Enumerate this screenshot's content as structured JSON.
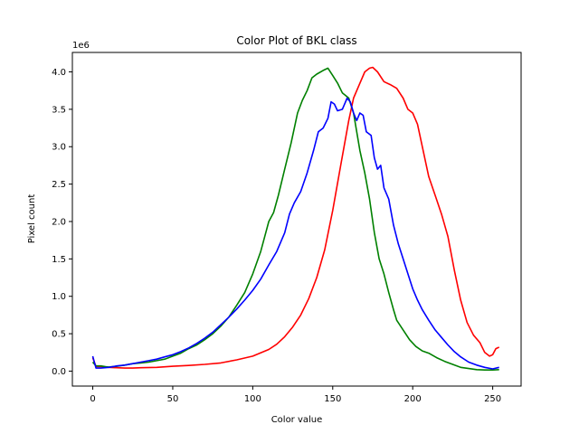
{
  "chart_data": {
    "type": "line",
    "title": "Color Plot of BKL class",
    "xlabel": "Color value",
    "ylabel": "Pixel count",
    "y_offset_label": "1e6",
    "xlim": [
      -12.75,
      267.75
    ],
    "ylim": [
      -0.2,
      4.26
    ],
    "xticks": [
      0,
      50,
      100,
      150,
      200,
      250
    ],
    "yticks": [
      0.0,
      0.5,
      1.0,
      1.5,
      2.0,
      2.5,
      3.0,
      3.5,
      4.0
    ],
    "ytick_labels": [
      "0.0",
      "0.5",
      "1.0",
      "1.5",
      "2.0",
      "2.5",
      "3.0",
      "3.5",
      "4.0"
    ],
    "grid": false,
    "series": [
      {
        "color": "#ff0000",
        "points": [
          [
            0,
            0.18
          ],
          [
            2,
            0.06
          ],
          [
            5,
            0.06
          ],
          [
            10,
            0.05
          ],
          [
            15,
            0.045
          ],
          [
            20,
            0.04
          ],
          [
            25,
            0.04
          ],
          [
            30,
            0.045
          ],
          [
            40,
            0.05
          ],
          [
            50,
            0.065
          ],
          [
            60,
            0.075
          ],
          [
            70,
            0.09
          ],
          [
            80,
            0.11
          ],
          [
            90,
            0.15
          ],
          [
            100,
            0.2
          ],
          [
            110,
            0.29
          ],
          [
            115,
            0.36
          ],
          [
            120,
            0.46
          ],
          [
            125,
            0.59
          ],
          [
            130,
            0.75
          ],
          [
            135,
            0.97
          ],
          [
            140,
            1.25
          ],
          [
            145,
            1.62
          ],
          [
            150,
            2.15
          ],
          [
            155,
            2.75
          ],
          [
            160,
            3.35
          ],
          [
            163,
            3.65
          ],
          [
            166,
            3.8
          ],
          [
            170,
            4.0
          ],
          [
            173,
            4.05
          ],
          [
            175,
            4.06
          ],
          [
            178,
            4.0
          ],
          [
            182,
            3.87
          ],
          [
            186,
            3.83
          ],
          [
            190,
            3.78
          ],
          [
            194,
            3.65
          ],
          [
            197,
            3.5
          ],
          [
            200,
            3.45
          ],
          [
            203,
            3.3
          ],
          [
            206,
            3.0
          ],
          [
            210,
            2.6
          ],
          [
            214,
            2.35
          ],
          [
            218,
            2.1
          ],
          [
            222,
            1.8
          ],
          [
            226,
            1.35
          ],
          [
            230,
            0.95
          ],
          [
            234,
            0.65
          ],
          [
            238,
            0.48
          ],
          [
            242,
            0.38
          ],
          [
            245,
            0.25
          ],
          [
            248,
            0.2
          ],
          [
            250,
            0.22
          ],
          [
            252,
            0.3
          ],
          [
            254,
            0.32
          ]
        ]
      },
      {
        "color": "#008000",
        "points": [
          [
            0,
            0.12
          ],
          [
            2,
            0.07
          ],
          [
            5,
            0.07
          ],
          [
            8,
            0.06
          ],
          [
            10,
            0.055
          ],
          [
            15,
            0.065
          ],
          [
            20,
            0.08
          ],
          [
            25,
            0.1
          ],
          [
            30,
            0.11
          ],
          [
            35,
            0.12
          ],
          [
            40,
            0.14
          ],
          [
            45,
            0.16
          ],
          [
            50,
            0.2
          ],
          [
            55,
            0.24
          ],
          [
            60,
            0.3
          ],
          [
            65,
            0.35
          ],
          [
            70,
            0.42
          ],
          [
            75,
            0.5
          ],
          [
            80,
            0.6
          ],
          [
            85,
            0.72
          ],
          [
            90,
            0.88
          ],
          [
            95,
            1.05
          ],
          [
            100,
            1.3
          ],
          [
            105,
            1.6
          ],
          [
            110,
            2.0
          ],
          [
            113,
            2.12
          ],
          [
            116,
            2.35
          ],
          [
            120,
            2.7
          ],
          [
            124,
            3.05
          ],
          [
            128,
            3.45
          ],
          [
            131,
            3.62
          ],
          [
            134,
            3.75
          ],
          [
            137,
            3.92
          ],
          [
            140,
            3.97
          ],
          [
            144,
            4.02
          ],
          [
            147,
            4.05
          ],
          [
            150,
            3.95
          ],
          [
            153,
            3.85
          ],
          [
            156,
            3.72
          ],
          [
            160,
            3.65
          ],
          [
            163,
            3.45
          ],
          [
            165,
            3.2
          ],
          [
            167,
            2.95
          ],
          [
            170,
            2.65
          ],
          [
            173,
            2.3
          ],
          [
            176,
            1.85
          ],
          [
            179,
            1.5
          ],
          [
            182,
            1.3
          ],
          [
            185,
            1.05
          ],
          [
            188,
            0.82
          ],
          [
            190,
            0.68
          ],
          [
            194,
            0.55
          ],
          [
            198,
            0.42
          ],
          [
            202,
            0.33
          ],
          [
            206,
            0.27
          ],
          [
            210,
            0.24
          ],
          [
            215,
            0.18
          ],
          [
            220,
            0.13
          ],
          [
            225,
            0.09
          ],
          [
            230,
            0.05
          ],
          [
            235,
            0.035
          ],
          [
            240,
            0.02
          ],
          [
            245,
            0.015
          ],
          [
            250,
            0.015
          ],
          [
            254,
            0.02
          ]
        ]
      },
      {
        "color": "#0000ff",
        "points": [
          [
            0,
            0.2
          ],
          [
            2,
            0.04
          ],
          [
            5,
            0.04
          ],
          [
            10,
            0.05
          ],
          [
            15,
            0.07
          ],
          [
            20,
            0.08
          ],
          [
            25,
            0.1
          ],
          [
            30,
            0.12
          ],
          [
            35,
            0.14
          ],
          [
            40,
            0.16
          ],
          [
            45,
            0.19
          ],
          [
            50,
            0.22
          ],
          [
            55,
            0.26
          ],
          [
            60,
            0.31
          ],
          [
            65,
            0.37
          ],
          [
            70,
            0.44
          ],
          [
            75,
            0.52
          ],
          [
            80,
            0.62
          ],
          [
            85,
            0.72
          ],
          [
            90,
            0.83
          ],
          [
            95,
            0.95
          ],
          [
            100,
            1.08
          ],
          [
            105,
            1.23
          ],
          [
            110,
            1.42
          ],
          [
            115,
            1.6
          ],
          [
            120,
            1.85
          ],
          [
            123,
            2.1
          ],
          [
            126,
            2.25
          ],
          [
            130,
            2.4
          ],
          [
            134,
            2.65
          ],
          [
            138,
            2.95
          ],
          [
            141,
            3.2
          ],
          [
            144,
            3.25
          ],
          [
            147,
            3.38
          ],
          [
            149,
            3.6
          ],
          [
            151,
            3.57
          ],
          [
            153,
            3.48
          ],
          [
            156,
            3.5
          ],
          [
            159,
            3.65
          ],
          [
            161,
            3.6
          ],
          [
            163,
            3.45
          ],
          [
            165,
            3.35
          ],
          [
            167,
            3.45
          ],
          [
            169,
            3.42
          ],
          [
            171,
            3.2
          ],
          [
            174,
            3.15
          ],
          [
            176,
            2.85
          ],
          [
            178,
            2.7
          ],
          [
            180,
            2.75
          ],
          [
            182,
            2.45
          ],
          [
            185,
            2.3
          ],
          [
            188,
            1.95
          ],
          [
            191,
            1.7
          ],
          [
            194,
            1.5
          ],
          [
            197,
            1.3
          ],
          [
            200,
            1.1
          ],
          [
            203,
            0.95
          ],
          [
            206,
            0.82
          ],
          [
            210,
            0.68
          ],
          [
            214,
            0.55
          ],
          [
            218,
            0.45
          ],
          [
            222,
            0.35
          ],
          [
            226,
            0.26
          ],
          [
            230,
            0.19
          ],
          [
            235,
            0.12
          ],
          [
            240,
            0.08
          ],
          [
            245,
            0.05
          ],
          [
            250,
            0.03
          ],
          [
            254,
            0.05
          ]
        ]
      }
    ]
  }
}
